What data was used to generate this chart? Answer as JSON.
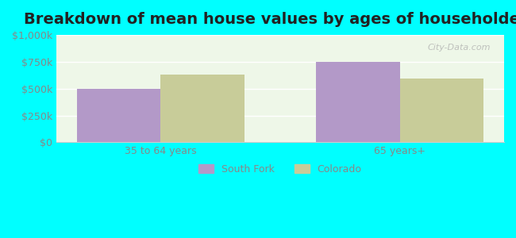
{
  "title": "Breakdown of mean house values by ages of householders",
  "categories": [
    "35 to 64 years",
    "65 years+"
  ],
  "south_fork_values": [
    500000,
    750000
  ],
  "colorado_values": [
    630000,
    590000
  ],
  "south_fork_color": "#b399c8",
  "colorado_color": "#c8cc99",
  "ylim": [
    0,
    1000000
  ],
  "yticks": [
    0,
    250000,
    500000,
    750000,
    1000000
  ],
  "ytick_labels": [
    "$0",
    "$250k",
    "$500k",
    "$750k",
    "$1,000k"
  ],
  "legend_south_fork": "South Fork",
  "legend_colorado": "Colorado",
  "background_color": "#00ffff",
  "plot_bg_color_top": "#e8f5e0",
  "plot_bg_color_bottom": "#f5fff5",
  "watermark": "City-Data.com",
  "bar_width": 0.35,
  "title_fontsize": 14,
  "tick_label_fontsize": 9,
  "axis_label_color": "#888888"
}
